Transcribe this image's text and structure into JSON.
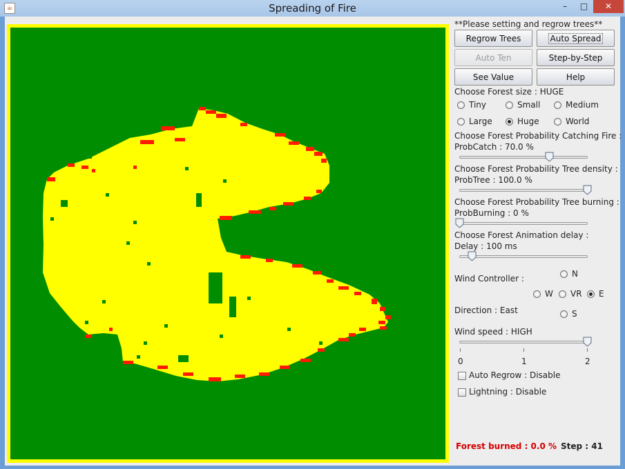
{
  "window": {
    "title": "Spreading of Fire",
    "minimize": "–",
    "maximize": "□",
    "close": "✕"
  },
  "colors": {
    "forest": "#008e00",
    "burning": "#ff1a00",
    "burnt": "#ffff00",
    "border": "#ffff00"
  },
  "panel": {
    "header": "**Please setting and regrow trees**",
    "buttons": {
      "regrow": "Regrow Trees",
      "auto_spread": "Auto Spread",
      "auto_ten": "Auto Ten",
      "step_by_step": "Step-by-Step",
      "see_value": "See Value",
      "help": "Help"
    },
    "forest_size": {
      "label": "Choose Forest size : HUGE",
      "options": [
        "Tiny",
        "Small",
        "Medium",
        "Large",
        "Huge",
        "World"
      ],
      "selected": "Huge"
    },
    "prob_catch": {
      "label": "Choose Forest Probability Catching Fire :",
      "value_label": "ProbCatch : 70.0 %",
      "value": 70
    },
    "prob_tree": {
      "label": "Choose Forest Probability Tree density :",
      "value_label": "ProbTree : 100.0 %",
      "value": 100
    },
    "prob_burning": {
      "label": "Choose Forest Probability Tree burning :",
      "value_label": "ProbBurning : 0 %",
      "value": 0
    },
    "delay": {
      "label": "Choose Forest Animation delay :",
      "value_label": "Delay : 100 ms",
      "value": 100
    },
    "wind": {
      "label": "Wind Controller :",
      "n": "N",
      "w": "W",
      "vr": "VR",
      "e": "E",
      "s": "S",
      "selected": "E",
      "direction": "Direction : East",
      "speed_label": "Wind speed : HIGH",
      "speed": 2,
      "ticks": [
        "0",
        "1",
        "2"
      ]
    },
    "auto_regrow": "Auto Regrow : Disable",
    "lightning": "Lightning : Disable",
    "forest_burned": "Forest burned : 0.0 %",
    "step": "Step : 41"
  }
}
